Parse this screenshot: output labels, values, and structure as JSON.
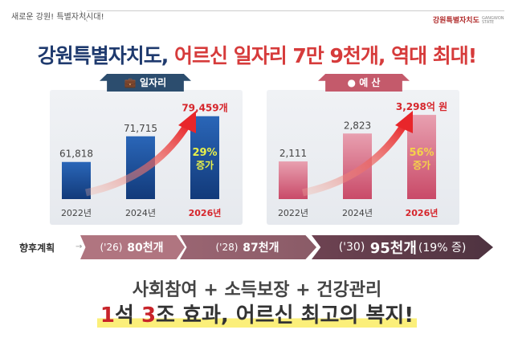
{
  "header": {
    "slogan": "새로운 강원! 특별자치시대!",
    "logo_text": "강원특별자치도",
    "logo_sub": "GANGWON STATE"
  },
  "title": {
    "part1": "강원특별자치도,",
    "part2": "어르신 일자리 7만 9천개, 역대 최대!"
  },
  "colors": {
    "navy": "#1f3a6e",
    "red": "#d63b3b",
    "jobs_bar": "#1d4f99",
    "budget_bar": "#d96b82",
    "highlight": "#fbef7a"
  },
  "chart_data": [
    {
      "type": "bar",
      "title": "일자리",
      "icon": "briefcase-icon",
      "categories": [
        "2022년",
        "2024년",
        "2026년"
      ],
      "values": [
        61818,
        71715,
        79459
      ],
      "value_labels": [
        "61,818",
        "71,715",
        "79,459개"
      ],
      "ylim": [
        47500,
        80000
      ],
      "annotation": [
        "29%",
        "증가"
      ]
    },
    {
      "type": "bar",
      "title": "예 산",
      "icon": "coin-icon",
      "categories": [
        "2022년",
        "2024년",
        "2026년"
      ],
      "values": [
        2111,
        2823,
        3298
      ],
      "value_labels": [
        "2,111",
        "2,823",
        "3,298억 원"
      ],
      "ylim": [
        1150,
        3300
      ],
      "annotation": [
        "56%",
        "증가"
      ]
    }
  ],
  "plan": {
    "label": "향후계획",
    "steps": [
      {
        "year": "('26)",
        "value": "80천개",
        "extra": ""
      },
      {
        "year": "('28)",
        "value": "87천개",
        "extra": ""
      },
      {
        "year": "('30)",
        "value": "95천개",
        "extra": "(19% 증)"
      }
    ]
  },
  "bottom": {
    "line1": "사회참여 + 소득보장 + 건강관리",
    "n1": "1",
    "t1": "석 ",
    "n2": "3",
    "t2": "조 효과, 어르신 최고의 복지!"
  }
}
